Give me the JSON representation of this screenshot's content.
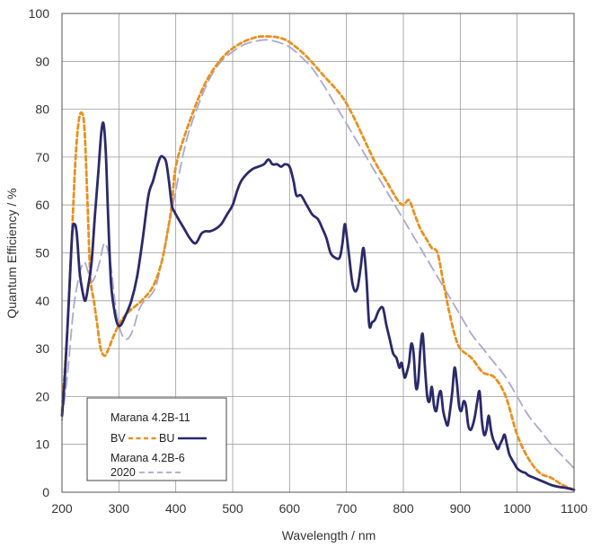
{
  "chart_data": {
    "type": "line",
    "xlabel": "Wavelength / nm",
    "ylabel": "Quantum Efficiency / %",
    "xlim": [
      200,
      1100
    ],
    "ylim": [
      0,
      100
    ],
    "xticks": [
      200,
      300,
      400,
      500,
      600,
      700,
      800,
      900,
      1000,
      1100
    ],
    "yticks": [
      0,
      10,
      20,
      30,
      40,
      50,
      60,
      70,
      80,
      90,
      100
    ],
    "grid": true,
    "legend": {
      "placement": "bottom-left",
      "group1_title": "Marana 4.2B-11",
      "group2_title_line1": "Marana 4.2B-6",
      "group2_title_line2": "2020"
    },
    "series": [
      {
        "name": "BV",
        "color": "#E8911E",
        "style": "dashed",
        "x": [
          200,
          210,
          218,
          224,
          230,
          236,
          240,
          245,
          250,
          256,
          262,
          268,
          275,
          282,
          292,
          305,
          320,
          340,
          360,
          375,
          385,
          393,
          400,
          420,
          450,
          480,
          510,
          540,
          560,
          580,
          600,
          630,
          660,
          690,
          710,
          730,
          750,
          770,
          790,
          800,
          810,
          820,
          830,
          840,
          850,
          860,
          870,
          880,
          890,
          900,
          920,
          940,
          960,
          980,
          1000,
          1020,
          1040,
          1060,
          1080,
          1100
        ],
        "values": [
          17,
          35,
          55,
          70,
          78,
          79,
          75,
          60,
          45,
          40,
          35,
          30,
          28.5,
          30,
          33,
          36,
          38,
          40,
          43,
          48,
          54,
          60,
          68,
          76,
          85,
          90.5,
          93.5,
          95,
          95.2,
          95,
          94,
          91,
          87,
          83,
          79,
          74,
          69,
          65,
          61,
          60,
          61,
          58,
          55,
          53,
          51,
          50,
          44,
          38,
          33,
          30,
          28,
          25,
          24,
          20,
          12,
          7,
          4,
          3,
          1.5,
          0.5
        ]
      },
      {
        "name": "BU",
        "color": "#2A2A6B",
        "style": "solid",
        "x": [
          200,
          205,
          212,
          218,
          222,
          226,
          231,
          236,
          241,
          246,
          252,
          258,
          264,
          269,
          273,
          277,
          281,
          286,
          292,
          298,
          304,
          312,
          322,
          332,
          342,
          352,
          360,
          367,
          373,
          378,
          383,
          388,
          393,
          398,
          405,
          415,
          425,
          435,
          445,
          452,
          460,
          470,
          480,
          490,
          500,
          508,
          515,
          525,
          535,
          545,
          555,
          563,
          570,
          578,
          585,
          592,
          600,
          607,
          612,
          620,
          630,
          640,
          650,
          658,
          665,
          672,
          680,
          688,
          693,
          697,
          701,
          705,
          710,
          715,
          720,
          725,
          730,
          735,
          740,
          745,
          750,
          757,
          764,
          770,
          776,
          782,
          788,
          793,
          797,
          802,
          806,
          810,
          814,
          818,
          822,
          826,
          830,
          834,
          838,
          842,
          846,
          850,
          854,
          858,
          862,
          866,
          870,
          874,
          878,
          882,
          886,
          890,
          894,
          898,
          902,
          906,
          910,
          914,
          918,
          922,
          926,
          930,
          934,
          938,
          942,
          946,
          950,
          954,
          958,
          962,
          966,
          970,
          974,
          978,
          982,
          986,
          990,
          995,
          1000,
          1005,
          1010,
          1015,
          1020,
          1030,
          1040,
          1050,
          1060,
          1070,
          1080,
          1090,
          1100
        ],
        "values": [
          16,
          24,
          40,
          54,
          56,
          54,
          46,
          42,
          40,
          43,
          48,
          58,
          67,
          75,
          77,
          71,
          58,
          44,
          38,
          35,
          35,
          37,
          40,
          45,
          53,
          62,
          65,
          68,
          70,
          70,
          69,
          65,
          60,
          58.5,
          57,
          55,
          53,
          52,
          54,
          54.5,
          54.5,
          55,
          56,
          58,
          60,
          63,
          65,
          66.5,
          67.5,
          68,
          68.5,
          69.5,
          68.5,
          68.5,
          68,
          68.5,
          68,
          65,
          62,
          62,
          60,
          58,
          57,
          55,
          53,
          50,
          49,
          49,
          52,
          56,
          53,
          49,
          44,
          42,
          43,
          47,
          51,
          45,
          35,
          35.5,
          36,
          38,
          38.5,
          35,
          32,
          29,
          28,
          26,
          27,
          24,
          25,
          27,
          31,
          29,
          22,
          23,
          30,
          33,
          26,
          20,
          19,
          22,
          18,
          17,
          20,
          21,
          17,
          15,
          14,
          17,
          21,
          26,
          23,
          18,
          17,
          19,
          18,
          14,
          13,
          14,
          16,
          19,
          21,
          15,
          12,
          13,
          16,
          13,
          11,
          10,
          9,
          10,
          11,
          12,
          10,
          8,
          7,
          6,
          5,
          4.5,
          4.2,
          4,
          3.5,
          3,
          2.5,
          2,
          1.5,
          1.2,
          1,
          0.8,
          0.5
        ],
        "sample_note": null
      },
      {
        "name": "2020",
        "color": "#A9A9CF",
        "style": "dashed",
        "x": [
          200,
          210,
          220,
          228,
          234,
          240,
          246,
          252,
          258,
          266,
          275,
          285,
          295,
          305,
          315,
          325,
          335,
          345,
          355,
          365,
          375,
          385,
          395,
          405,
          420,
          440,
          460,
          480,
          500,
          520,
          540,
          560,
          580,
          600,
          620,
          640,
          660,
          680,
          700,
          720,
          740,
          760,
          780,
          800,
          820,
          840,
          860,
          880,
          900,
          920,
          940,
          960,
          980,
          1000,
          1020,
          1040,
          1060,
          1080,
          1100
        ],
        "values": [
          15,
          25,
          38,
          44,
          47,
          48,
          46,
          44,
          45,
          48,
          52,
          48,
          38,
          33,
          32,
          34,
          38,
          40,
          41,
          43,
          48,
          54,
          60,
          66,
          74,
          81,
          86.5,
          90,
          92,
          93.5,
          94.2,
          94.5,
          94,
          93,
          91,
          88.5,
          85,
          81,
          77,
          73,
          69,
          65,
          61,
          57,
          53,
          49,
          45,
          41,
          37,
          33,
          30,
          27,
          24,
          20,
          16,
          13,
          10,
          7.5,
          5
        ]
      }
    ]
  }
}
